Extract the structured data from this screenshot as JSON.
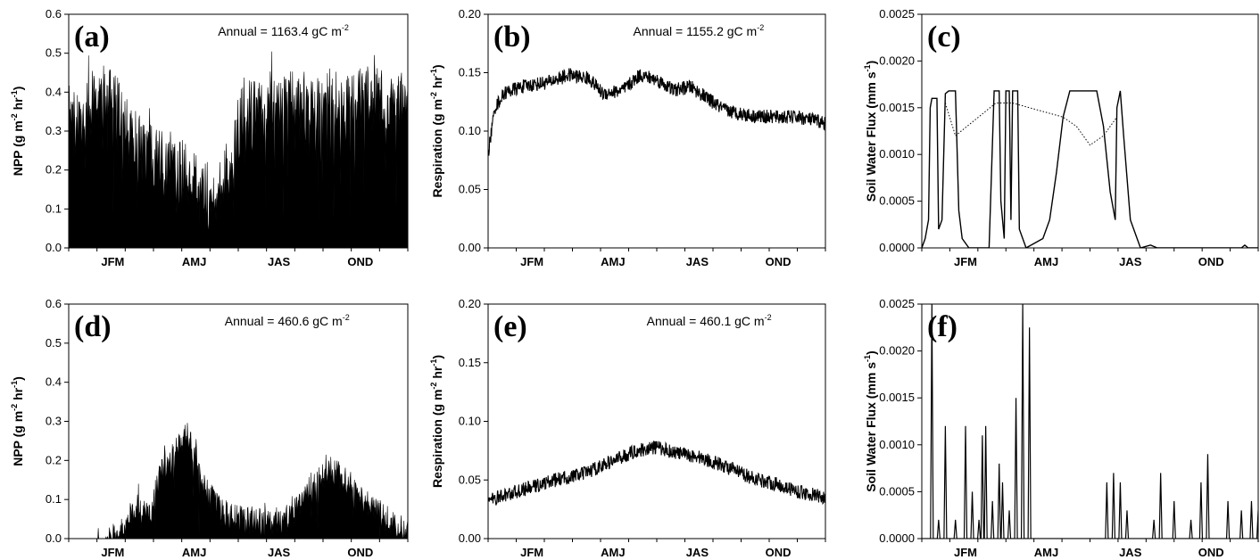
{
  "chart_data": [
    {
      "panel": "(a)",
      "type": "area",
      "style": "spiky-filled",
      "ylabel_parts": [
        "NPP (g m",
        "-2",
        " hr",
        "-1",
        ")"
      ],
      "annotation": {
        "text": "Annual = 1163.4 gC m",
        "sup": "-2"
      },
      "ylim": [
        0,
        0.6
      ],
      "yticks": [
        "0.0",
        "0.1",
        "0.2",
        "0.3",
        "0.4",
        "0.5",
        "0.6"
      ],
      "categories": [
        "JFM",
        "AMJ",
        "JAS",
        "OND"
      ],
      "envelope": [
        [
          0,
          0.42
        ],
        [
          0.03,
          0.4
        ],
        [
          0.06,
          0.45
        ],
        [
          0.1,
          0.47
        ],
        [
          0.14,
          0.45
        ],
        [
          0.2,
          0.36
        ],
        [
          0.26,
          0.32
        ],
        [
          0.3,
          0.3
        ],
        [
          0.35,
          0.27
        ],
        [
          0.4,
          0.23
        ],
        [
          0.44,
          0.2
        ],
        [
          0.48,
          0.32
        ],
        [
          0.52,
          0.45
        ],
        [
          0.58,
          0.42
        ],
        [
          0.64,
          0.46
        ],
        [
          0.7,
          0.44
        ],
        [
          0.76,
          0.47
        ],
        [
          0.82,
          0.45
        ],
        [
          0.9,
          0.48
        ],
        [
          0.96,
          0.45
        ],
        [
          1.0,
          0.47
        ]
      ],
      "noise": 0.14,
      "base": 0.05,
      "max_spike": 0.55
    },
    {
      "panel": "(b)",
      "type": "line",
      "ylabel_parts": [
        "Respiration (g m",
        "-2",
        " hr",
        "-1",
        ")"
      ],
      "annotation": {
        "text": "Annual = 1155.2 gC m",
        "sup": "-2"
      },
      "ylim": [
        0,
        0.2
      ],
      "yticks": [
        "0.00",
        "0.05",
        "0.10",
        "0.15",
        "0.20"
      ],
      "categories": [
        "JFM",
        "AMJ",
        "JAS",
        "OND"
      ],
      "envelope": [
        [
          0,
          0.08
        ],
        [
          0.02,
          0.12
        ],
        [
          0.05,
          0.133
        ],
        [
          0.1,
          0.138
        ],
        [
          0.18,
          0.142
        ],
        [
          0.24,
          0.148
        ],
        [
          0.3,
          0.145
        ],
        [
          0.34,
          0.132
        ],
        [
          0.4,
          0.135
        ],
        [
          0.45,
          0.148
        ],
        [
          0.5,
          0.144
        ],
        [
          0.55,
          0.135
        ],
        [
          0.6,
          0.138
        ],
        [
          0.65,
          0.128
        ],
        [
          0.7,
          0.118
        ],
        [
          0.78,
          0.113
        ],
        [
          0.85,
          0.112
        ],
        [
          0.92,
          0.112
        ],
        [
          1.0,
          0.107
        ]
      ],
      "noise": 0.006
    },
    {
      "panel": "(c)",
      "type": "line",
      "ylabel_parts": [
        "Soil Water Flux (mm s",
        "-1",
        ")"
      ],
      "ylim": [
        0,
        0.0025
      ],
      "yticks": [
        "0.0000",
        "0.0005",
        "0.0010",
        "0.0015",
        "0.0020",
        "0.0025"
      ],
      "categories": [
        "JFM",
        "AMJ",
        "JAS",
        "OND"
      ],
      "series": [
        {
          "name": "solid",
          "points": [
            [
              0,
              0
            ],
            [
              0.01,
              0.0001
            ],
            [
              0.02,
              0.0003
            ],
            [
              0.025,
              0.0015
            ],
            [
              0.03,
              0.0016
            ],
            [
              0.045,
              0.0016
            ],
            [
              0.05,
              0.0002
            ],
            [
              0.06,
              0.0003
            ],
            [
              0.07,
              0.00165
            ],
            [
              0.08,
              0.00168
            ],
            [
              0.1,
              0.00168
            ],
            [
              0.11,
              0.0004
            ],
            [
              0.12,
              0.0001
            ],
            [
              0.14,
              0
            ],
            [
              0.2,
              0
            ],
            [
              0.215,
              0.00168
            ],
            [
              0.23,
              0.00168
            ],
            [
              0.235,
              0.0005
            ],
            [
              0.245,
              0.0001
            ],
            [
              0.25,
              0.00168
            ],
            [
              0.26,
              0.00168
            ],
            [
              0.265,
              0.0003
            ],
            [
              0.27,
              0.00168
            ],
            [
              0.285,
              0.00168
            ],
            [
              0.29,
              0.0002
            ],
            [
              0.31,
              0
            ],
            [
              0.36,
              0.0001
            ],
            [
              0.38,
              0.0003
            ],
            [
              0.4,
              0.0008
            ],
            [
              0.42,
              0.0014
            ],
            [
              0.44,
              0.00168
            ],
            [
              0.52,
              0.00168
            ],
            [
              0.54,
              0.0013
            ],
            [
              0.56,
              0.0006
            ],
            [
              0.575,
              0.0003
            ],
            [
              0.58,
              0.0015
            ],
            [
              0.59,
              0.00168
            ],
            [
              0.6,
              0.0012
            ],
            [
              0.62,
              0.0003
            ],
            [
              0.65,
              0
            ],
            [
              0.68,
              3e-05
            ],
            [
              0.7,
              0
            ],
            [
              0.95,
              0
            ],
            [
              0.96,
              3e-05
            ],
            [
              0.97,
              0
            ],
            [
              1.0,
              0
            ]
          ]
        },
        {
          "name": "dotted",
          "points": [
            [
              0.07,
              0.00155
            ],
            [
              0.1,
              0.0012
            ],
            [
              0.22,
              0.00155
            ],
            [
              0.27,
              0.00155
            ],
            [
              0.42,
              0.0014
            ],
            [
              0.46,
              0.0013
            ],
            [
              0.5,
              0.0011
            ],
            [
              0.54,
              0.0012
            ],
            [
              0.58,
              0.0014
            ]
          ]
        }
      ]
    },
    {
      "panel": "(d)",
      "type": "area",
      "style": "spiky-filled",
      "ylabel_parts": [
        "NPP (g m",
        "-2",
        " hr",
        "-1",
        ")"
      ],
      "annotation": {
        "text": "Annual = 460.6 gC m",
        "sup": "-2"
      },
      "ylim": [
        0,
        0.6
      ],
      "yticks": [
        "0.0",
        "0.1",
        "0.2",
        "0.3",
        "0.4",
        "0.5",
        "0.6"
      ],
      "categories": [
        "JFM",
        "AMJ",
        "JAS",
        "OND"
      ],
      "envelope": [
        [
          0,
          0
        ],
        [
          0.08,
          0
        ],
        [
          0.12,
          0.02
        ],
        [
          0.16,
          0.06
        ],
        [
          0.2,
          0.12
        ],
        [
          0.24,
          0.1
        ],
        [
          0.27,
          0.2
        ],
        [
          0.31,
          0.25
        ],
        [
          0.35,
          0.3
        ],
        [
          0.37,
          0.25
        ],
        [
          0.4,
          0.16
        ],
        [
          0.44,
          0.12
        ],
        [
          0.48,
          0.09
        ],
        [
          0.56,
          0.08
        ],
        [
          0.62,
          0.07
        ],
        [
          0.66,
          0.1
        ],
        [
          0.72,
          0.18
        ],
        [
          0.76,
          0.2
        ],
        [
          0.8,
          0.2
        ],
        [
          0.84,
          0.16
        ],
        [
          0.88,
          0.13
        ],
        [
          0.92,
          0.1
        ],
        [
          0.96,
          0.07
        ],
        [
          1.0,
          0.05
        ]
      ],
      "noise": 0.06,
      "base": 0.0,
      "max_spike": 0.33
    },
    {
      "panel": "(e)",
      "type": "line",
      "ylabel_parts": [
        "Respiration (g m",
        "-2",
        " hr",
        "-1",
        ")"
      ],
      "annotation": {
        "text": "Annual = 460.1 gC m",
        "sup": "-2"
      },
      "ylim": [
        0,
        0.2
      ],
      "yticks": [
        "0.00",
        "0.05",
        "0.10",
        "0.15",
        "0.20"
      ],
      "categories": [
        "JFM",
        "AMJ",
        "JAS",
        "OND"
      ],
      "envelope": [
        [
          0,
          0.032
        ],
        [
          0.05,
          0.037
        ],
        [
          0.12,
          0.043
        ],
        [
          0.2,
          0.05
        ],
        [
          0.28,
          0.055
        ],
        [
          0.36,
          0.065
        ],
        [
          0.44,
          0.075
        ],
        [
          0.5,
          0.078
        ],
        [
          0.56,
          0.073
        ],
        [
          0.62,
          0.07
        ],
        [
          0.7,
          0.062
        ],
        [
          0.78,
          0.052
        ],
        [
          0.86,
          0.046
        ],
        [
          0.92,
          0.04
        ],
        [
          1.0,
          0.035
        ]
      ],
      "noise": 0.006
    },
    {
      "panel": "(f)",
      "type": "line",
      "ylabel_parts": [
        "Soil Water Flux (mm s",
        "-1",
        ")"
      ],
      "ylim": [
        0,
        0.0025
      ],
      "yticks": [
        "0.0000",
        "0.0005",
        "0.0010",
        "0.0015",
        "0.0020",
        "0.0025"
      ],
      "categories": [
        "JFM",
        "AMJ",
        "JAS",
        "OND"
      ],
      "spikes": [
        [
          0.03,
          0.0025
        ],
        [
          0.05,
          0.0002
        ],
        [
          0.07,
          0.0012
        ],
        [
          0.1,
          0.0002
        ],
        [
          0.13,
          0.0012
        ],
        [
          0.15,
          0.0005
        ],
        [
          0.17,
          0.0002
        ],
        [
          0.18,
          0.0011
        ],
        [
          0.19,
          0.0012
        ],
        [
          0.21,
          0.0004
        ],
        [
          0.23,
          0.0008
        ],
        [
          0.24,
          0.0006
        ],
        [
          0.26,
          0.0003
        ],
        [
          0.28,
          0.0015
        ],
        [
          0.3,
          0.0025
        ],
        [
          0.32,
          0.00225
        ],
        [
          0.45,
          0
        ],
        [
          0.55,
          0.0006
        ],
        [
          0.57,
          0.0007
        ],
        [
          0.59,
          0.0006
        ],
        [
          0.61,
          0.0003
        ],
        [
          0.69,
          0.0002
        ],
        [
          0.71,
          0.0007
        ],
        [
          0.75,
          0.0004
        ],
        [
          0.8,
          0.0002
        ],
        [
          0.83,
          0.0006
        ],
        [
          0.85,
          0.0009
        ],
        [
          0.91,
          0.0004
        ],
        [
          0.95,
          0.0003
        ],
        [
          0.98,
          0.0004
        ],
        [
          1.0,
          0.0003
        ]
      ]
    }
  ]
}
